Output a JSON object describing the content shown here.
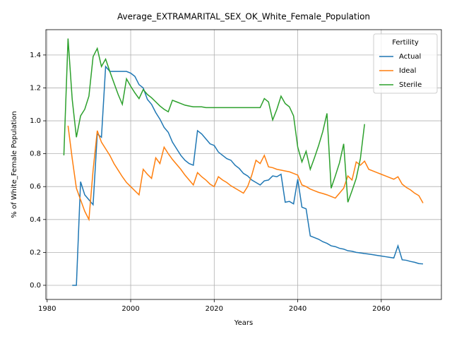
{
  "chart_data": {
    "type": "line",
    "title": "Average_EXTRAMARITAL_SEX_OK_White_Female_Population",
    "x_label": "Years",
    "y_label": "% of White_Female Population",
    "x": [
      1984,
      1985,
      1986,
      1987,
      1988,
      1989,
      1990,
      1991,
      1992,
      1993,
      1994,
      1995,
      1996,
      1997,
      1998,
      1999,
      2000,
      2001,
      2002,
      2003,
      2004,
      2005,
      2006,
      2007,
      2008,
      2009,
      2010,
      2011,
      2012,
      2013,
      2014,
      2015,
      2016,
      2017,
      2018,
      2019,
      2020,
      2021,
      2022,
      2023,
      2024,
      2025,
      2026,
      2027,
      2028,
      2029,
      2030,
      2031,
      2032,
      2033,
      2034,
      2035,
      2036,
      2037,
      2038,
      2039,
      2040,
      2041,
      2042,
      2043,
      2044,
      2045,
      2046,
      2047,
      2048,
      2049,
      2050,
      2051,
      2052,
      2053,
      2054,
      2055,
      2056,
      2057,
      2058,
      2059,
      2060,
      2061,
      2062,
      2063,
      2064,
      2065,
      2066,
      2067,
      2068,
      2069,
      2070
    ],
    "series": [
      {
        "name": "Actual",
        "color": "#1f77b4",
        "values": [
          null,
          null,
          0,
          0,
          0.63,
          0.55,
          0.52,
          0.49,
          0.92,
          0.9,
          1.33,
          1.3,
          1.3,
          1.3,
          1.3,
          1.3,
          1.29,
          1.27,
          1.22,
          1.2,
          1.13,
          1.1,
          1.05,
          1.01,
          0.96,
          0.93,
          0.87,
          0.83,
          0.79,
          0.76,
          0.74,
          0.73,
          0.94,
          0.92,
          0.89,
          0.86,
          0.85,
          0.81,
          0.79,
          0.77,
          0.76,
          0.73,
          0.71,
          0.68,
          0.665,
          0.64,
          0.625,
          0.61,
          0.635,
          0.64,
          0.665,
          0.66,
          0.675,
          0.505,
          0.51,
          0.495,
          0.645,
          0.475,
          0.465,
          0.3,
          0.29,
          0.28,
          0.265,
          0.255,
          0.24,
          0.235,
          0.225,
          0.22,
          0.21,
          0.207,
          0.2,
          0.197,
          0.193,
          0.19,
          0.186,
          0.182,
          0.178,
          0.174,
          0.17,
          0.166,
          0.24,
          0.155,
          0.152,
          0.145,
          0.14,
          0.132,
          0.13
        ]
      },
      {
        "name": "Ideal",
        "color": "#ff7f0e",
        "values": [
          null,
          0.97,
          0.77,
          0.59,
          0.52,
          0.45,
          0.4,
          0.7,
          0.94,
          0.87,
          0.83,
          0.79,
          0.74,
          0.7,
          0.66,
          0.625,
          0.6,
          0.575,
          0.55,
          0.705,
          0.675,
          0.65,
          0.775,
          0.74,
          0.84,
          0.8,
          0.765,
          0.735,
          0.705,
          0.67,
          0.64,
          0.61,
          0.685,
          0.66,
          0.64,
          0.615,
          0.6,
          0.66,
          0.64,
          0.625,
          0.605,
          0.59,
          0.575,
          0.56,
          0.6,
          0.67,
          0.76,
          0.74,
          0.79,
          0.72,
          0.715,
          0.705,
          0.7,
          0.695,
          0.69,
          0.68,
          0.67,
          0.61,
          0.6,
          0.585,
          0.575,
          0.565,
          0.558,
          0.55,
          0.54,
          0.53,
          0.56,
          0.59,
          0.665,
          0.64,
          0.75,
          0.73,
          0.755,
          0.705,
          0.695,
          0.685,
          0.675,
          0.665,
          0.655,
          0.645,
          0.66,
          0.615,
          0.595,
          0.58,
          0.56,
          0.545,
          0.5
        ]
      },
      {
        "name": "Sterile",
        "color": "#2ca02c",
        "values": [
          0.79,
          1.5,
          1.13,
          0.9,
          1.03,
          1.07,
          1.15,
          1.39,
          1.44,
          1.33,
          1.375,
          1.3,
          1.23,
          1.16,
          1.1,
          1.255,
          1.21,
          1.17,
          1.135,
          1.19,
          1.16,
          1.14,
          1.115,
          1.09,
          1.07,
          1.055,
          1.125,
          1.115,
          1.105,
          1.095,
          1.09,
          1.085,
          1.085,
          1.085,
          1.08,
          1.08,
          1.08,
          1.08,
          1.08,
          1.08,
          1.08,
          1.08,
          1.08,
          1.08,
          1.08,
          1.08,
          1.08,
          1.08,
          1.135,
          1.115,
          1.005,
          1.07,
          1.15,
          1.105,
          1.085,
          1.03,
          0.84,
          0.75,
          0.815,
          0.705,
          0.775,
          0.85,
          0.935,
          1.045,
          0.59,
          0.665,
          0.745,
          0.86,
          0.505,
          0.575,
          0.65,
          0.77,
          0.98,
          null,
          null,
          null,
          null,
          null,
          null,
          null,
          null,
          null,
          null,
          null,
          null,
          null,
          null
        ]
      }
    ],
    "xlim": [
      1979.7,
      2074.4
    ],
    "ylim": [
      -0.086,
      1.554
    ],
    "xticks": [
      1980,
      2000,
      2020,
      2040,
      2060
    ],
    "yticks": [
      {
        "value": 0,
        "label": "0.0"
      },
      0.2,
      0.4,
      0.6,
      0.8,
      {
        "value": 1,
        "label": "1.0"
      },
      1.2,
      1.4
    ],
    "grid": true,
    "legend_title": "Fertility",
    "legend_position": "upper right"
  }
}
